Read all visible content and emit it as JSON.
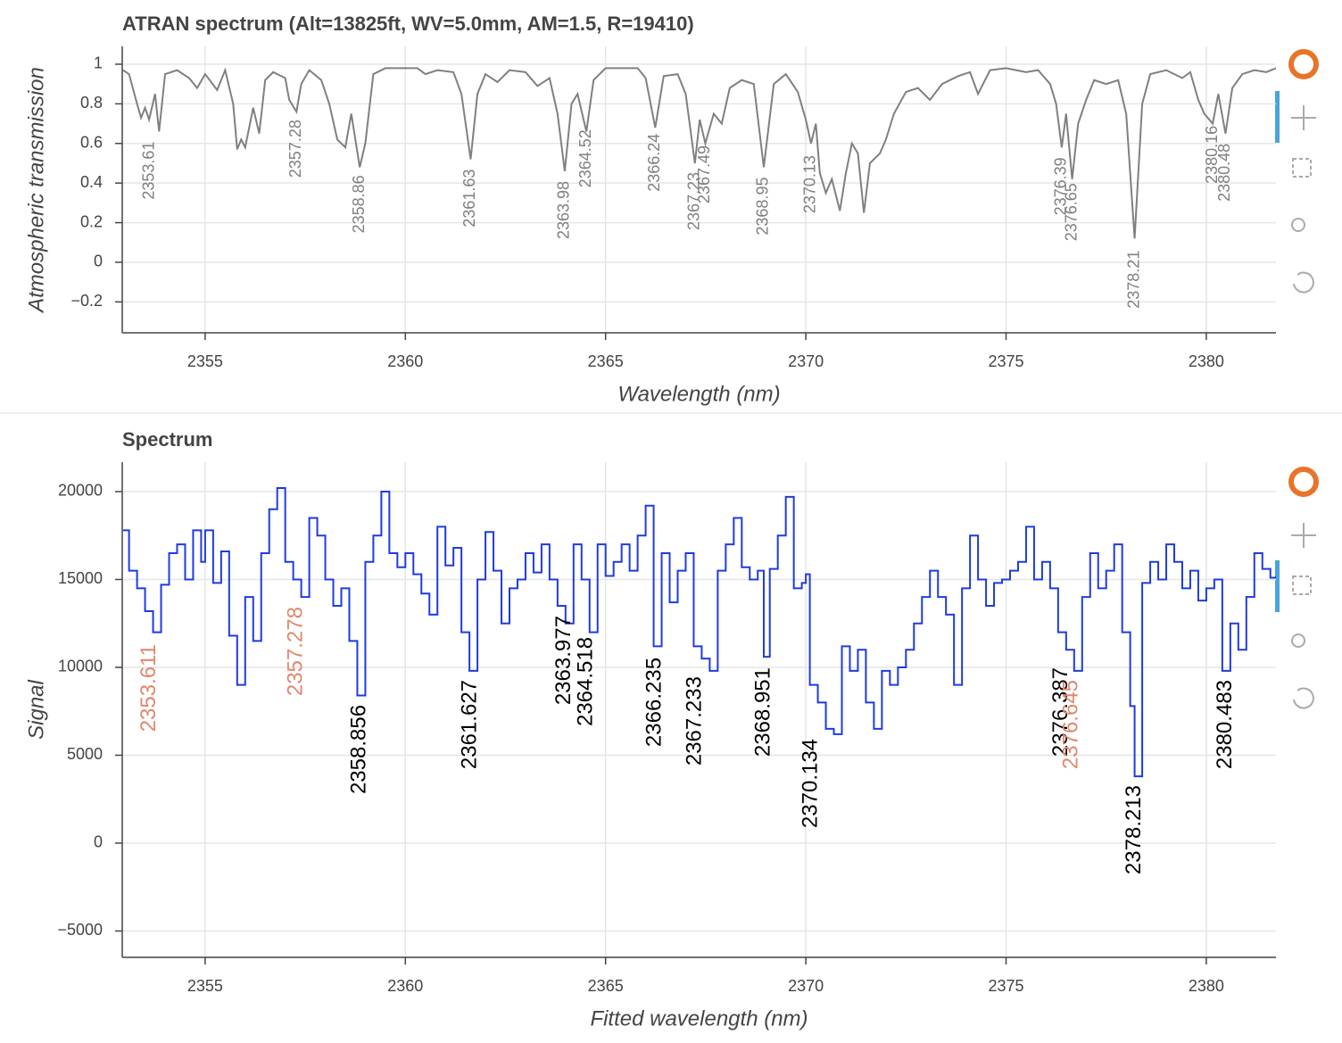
{
  "chart_data": [
    {
      "type": "line",
      "title": "ATRAN spectrum (Alt=13825ft, WV=5.0mm, AM=1.5, R=19410)",
      "x_label": "Wavelength (nm)",
      "y_label": "Atmospheric transmission",
      "color": "#808080",
      "grid": true,
      "step": false,
      "xlim": [
        2352.93,
        2381.74
      ],
      "ylim": [
        -0.356,
        1.09
      ],
      "xticks": [
        2355,
        2360,
        2365,
        2370,
        2375,
        2380
      ],
      "yticks": [
        1,
        0.8,
        0.6,
        0.4,
        0.2,
        0,
        {
          "value": -0.2,
          "label": "−0.2"
        }
      ],
      "x": [
        2352.95,
        2353.1,
        2353.3,
        2353.4,
        2353.5,
        2353.6,
        2353.75,
        2353.85,
        2354.0,
        2354.3,
        2354.6,
        2354.8,
        2355.0,
        2355.3,
        2355.5,
        2355.7,
        2355.8,
        2355.9,
        2356.0,
        2356.2,
        2356.35,
        2356.5,
        2356.7,
        2357.0,
        2357.1,
        2357.28,
        2357.4,
        2357.6,
        2357.9,
        2358.1,
        2358.3,
        2358.5,
        2358.65,
        2358.86,
        2359.0,
        2359.2,
        2359.5,
        2360.3,
        2360.5,
        2360.8,
        2361.2,
        2361.4,
        2361.63,
        2361.8,
        2362.0,
        2362.3,
        2362.6,
        2363.0,
        2363.3,
        2363.6,
        2363.8,
        2363.98,
        2364.15,
        2364.3,
        2364.52,
        2364.7,
        2365.0,
        2365.8,
        2366.0,
        2366.24,
        2366.45,
        2366.8,
        2367.0,
        2367.23,
        2367.35,
        2367.49,
        2367.7,
        2367.9,
        2368.1,
        2368.4,
        2368.7,
        2368.95,
        2369.2,
        2369.5,
        2369.8,
        2370.0,
        2370.13,
        2370.25,
        2370.35,
        2370.5,
        2370.65,
        2370.85,
        2371.0,
        2371.15,
        2371.3,
        2371.45,
        2371.6,
        2371.85,
        2372.0,
        2372.2,
        2372.5,
        2372.8,
        2373.1,
        2373.4,
        2373.8,
        2374.1,
        2374.3,
        2374.6,
        2375.0,
        2375.5,
        2375.8,
        2376.1,
        2376.25,
        2376.39,
        2376.5,
        2376.65,
        2376.8,
        2377.0,
        2377.2,
        2377.5,
        2377.8,
        2378.0,
        2378.21,
        2378.4,
        2378.6,
        2379.0,
        2379.4,
        2379.6,
        2379.8,
        2379.95,
        2380.16,
        2380.3,
        2380.48,
        2380.65,
        2380.9,
        2381.2,
        2381.5,
        2381.74
      ],
      "values": [
        0.97,
        0.95,
        0.8,
        0.73,
        0.78,
        0.72,
        0.85,
        0.66,
        0.95,
        0.97,
        0.93,
        0.88,
        0.95,
        0.87,
        0.97,
        0.8,
        0.57,
        0.62,
        0.58,
        0.78,
        0.65,
        0.92,
        0.96,
        0.93,
        0.82,
        0.76,
        0.9,
        0.97,
        0.92,
        0.8,
        0.62,
        0.58,
        0.75,
        0.48,
        0.6,
        0.95,
        0.98,
        0.98,
        0.95,
        0.97,
        0.96,
        0.85,
        0.52,
        0.85,
        0.95,
        0.91,
        0.97,
        0.96,
        0.89,
        0.93,
        0.75,
        0.46,
        0.8,
        0.85,
        0.66,
        0.92,
        0.98,
        0.98,
        0.93,
        0.68,
        0.94,
        0.95,
        0.85,
        0.5,
        0.72,
        0.6,
        0.75,
        0.7,
        0.88,
        0.92,
        0.9,
        0.48,
        0.9,
        0.95,
        0.86,
        0.72,
        0.6,
        0.7,
        0.45,
        0.35,
        0.42,
        0.26,
        0.45,
        0.6,
        0.55,
        0.25,
        0.5,
        0.55,
        0.62,
        0.75,
        0.86,
        0.88,
        0.82,
        0.9,
        0.94,
        0.96,
        0.85,
        0.97,
        0.98,
        0.96,
        0.97,
        0.9,
        0.8,
        0.58,
        0.75,
        0.42,
        0.7,
        0.82,
        0.92,
        0.9,
        0.92,
        0.75,
        0.12,
        0.8,
        0.95,
        0.97,
        0.93,
        0.96,
        0.82,
        0.75,
        0.7,
        0.85,
        0.65,
        0.88,
        0.95,
        0.97,
        0.96,
        0.98
      ],
      "annotation_color": "#808080",
      "annotations": [
        {
          "text": "2353.61",
          "x": 2353.61,
          "y": 0.61
        },
        {
          "text": "2357.28",
          "x": 2357.28,
          "y": 0.72
        },
        {
          "text": "2358.86",
          "x": 2358.86,
          "y": 0.44
        },
        {
          "text": "2361.63",
          "x": 2361.63,
          "y": 0.47
        },
        {
          "text": "2363.98",
          "x": 2363.98,
          "y": 0.41
        },
        {
          "text": "2364.52",
          "x": 2364.52,
          "y": 0.67
        },
        {
          "text": "2366.24",
          "x": 2366.24,
          "y": 0.65
        },
        {
          "text": "2367.23",
          "x": 2367.23,
          "y": 0.455
        },
        {
          "text": "2367.49",
          "x": 2367.49,
          "y": 0.59
        },
        {
          "text": "2368.95",
          "x": 2368.95,
          "y": 0.43
        },
        {
          "text": "2370.13",
          "x": 2370.13,
          "y": 0.54
        },
        {
          "text": "2376.39",
          "x": 2376.39,
          "y": 0.53
        },
        {
          "text": "2376.65",
          "x": 2376.65,
          "y": 0.4
        },
        {
          "text": "2378.21",
          "x": 2378.21,
          "y": 0.06
        },
        {
          "text": "2380.16",
          "x": 2380.16,
          "y": 0.69
        },
        {
          "text": "2380.48",
          "x": 2380.48,
          "y": 0.6
        }
      ]
    },
    {
      "type": "line",
      "title": "Spectrum",
      "x_label": "Fitted wavelength (nm)",
      "y_label": "Signal",
      "color": "#1f3be0",
      "grid": true,
      "step": true,
      "xlim": [
        2352.93,
        2381.74
      ],
      "ylim": [
        -6500,
        21675
      ],
      "xticks": [
        2355,
        2360,
        2365,
        2370,
        2375,
        2380
      ],
      "yticks": [
        20000,
        15000,
        10000,
        5000,
        0,
        {
          "value": -5000,
          "label": "−5000"
        }
      ],
      "x": [
        2352.95,
        2353.1,
        2353.3,
        2353.5,
        2353.7,
        2353.9,
        2354.1,
        2354.3,
        2354.5,
        2354.7,
        2354.9,
        2355.0,
        2355.2,
        2355.4,
        2355.6,
        2355.8,
        2356.0,
        2356.2,
        2356.4,
        2356.6,
        2356.8,
        2357.0,
        2357.2,
        2357.4,
        2357.6,
        2357.8,
        2358.0,
        2358.2,
        2358.4,
        2358.6,
        2358.8,
        2359.0,
        2359.2,
        2359.4,
        2359.6,
        2359.8,
        2360.0,
        2360.2,
        2360.4,
        2360.6,
        2360.8,
        2361.0,
        2361.2,
        2361.4,
        2361.6,
        2361.8,
        2362.0,
        2362.2,
        2362.4,
        2362.6,
        2362.8,
        2363.0,
        2363.2,
        2363.4,
        2363.6,
        2363.8,
        2364.0,
        2364.2,
        2364.4,
        2364.6,
        2364.8,
        2365.0,
        2365.2,
        2365.4,
        2365.6,
        2365.8,
        2366.0,
        2366.2,
        2366.4,
        2366.6,
        2366.8,
        2367.0,
        2367.2,
        2367.4,
        2367.6,
        2367.8,
        2368.0,
        2368.2,
        2368.4,
        2368.6,
        2368.8,
        2368.95,
        2369.1,
        2369.3,
        2369.5,
        2369.7,
        2369.9,
        2370.0,
        2370.1,
        2370.3,
        2370.5,
        2370.7,
        2370.9,
        2371.1,
        2371.3,
        2371.5,
        2371.7,
        2371.9,
        2372.1,
        2372.3,
        2372.5,
        2372.7,
        2372.9,
        2373.1,
        2373.3,
        2373.5,
        2373.7,
        2373.9,
        2374.1,
        2374.3,
        2374.5,
        2374.7,
        2374.9,
        2375.1,
        2375.3,
        2375.5,
        2375.7,
        2375.9,
        2376.1,
        2376.3,
        2376.5,
        2376.7,
        2376.9,
        2377.1,
        2377.3,
        2377.5,
        2377.7,
        2377.9,
        2378.1,
        2378.21,
        2378.4,
        2378.6,
        2378.8,
        2379.0,
        2379.2,
        2379.4,
        2379.6,
        2379.8,
        2380.0,
        2380.2,
        2380.4,
        2380.6,
        2380.8,
        2381.0,
        2381.2,
        2381.4,
        2381.6,
        2381.74
      ],
      "values": [
        17800,
        15500,
        14500,
        13200,
        12000,
        14700,
        16500,
        17000,
        15000,
        17800,
        16000,
        17800,
        14800,
        16600,
        11800,
        9000,
        14000,
        11500,
        16500,
        19000,
        20200,
        16000,
        15000,
        14000,
        18500,
        17500,
        15000,
        13500,
        14500,
        11500,
        8400,
        16000,
        17500,
        20000,
        16500,
        15700,
        16500,
        15300,
        14200,
        13000,
        18000,
        15800,
        16800,
        12000,
        9800,
        15000,
        17700,
        15500,
        12500,
        14500,
        15000,
        16500,
        15400,
        17000,
        15000,
        13500,
        12500,
        17000,
        15000,
        12000,
        17000,
        15200,
        16000,
        17000,
        15500,
        17500,
        19200,
        11200,
        16500,
        13700,
        15500,
        16500,
        11200,
        10500,
        9800,
        15500,
        17000,
        18500,
        15700,
        15000,
        15500,
        10600,
        15600,
        17500,
        19700,
        14500,
        14800,
        15300,
        9000,
        8000,
        6500,
        6200,
        11200,
        9800,
        11000,
        8000,
        6500,
        9800,
        9000,
        10000,
        11000,
        12500,
        14000,
        15500,
        14000,
        13000,
        9000,
        14500,
        17500,
        15000,
        13500,
        14800,
        15000,
        15500,
        16000,
        18000,
        15000,
        16000,
        14500,
        12000,
        11000,
        9800,
        14000,
        16500,
        14500,
        15500,
        17000,
        12000,
        7800,
        3800,
        14800,
        16000,
        15000,
        17000,
        16000,
        14500,
        15500,
        13800,
        14500,
        15000,
        9800,
        12500,
        11000,
        14000,
        16500,
        15600,
        15100,
        15200
      ],
      "annotations": [
        {
          "text": "2353.611",
          "x": 2353.611,
          "y": 11320,
          "color": "#e0886e"
        },
        {
          "text": "2357.278",
          "x": 2357.278,
          "y": 13450,
          "color": "#e0886e"
        },
        {
          "text": "2358.856",
          "x": 2358.856,
          "y": 7870,
          "color": "#000000"
        },
        {
          "text": "2361.627",
          "x": 2361.627,
          "y": 9290,
          "color": "#000000"
        },
        {
          "text": "2363.977",
          "x": 2363.977,
          "y": 12940,
          "color": "#000000"
        },
        {
          "text": "2364.518",
          "x": 2364.518,
          "y": 11730,
          "color": "#000000"
        },
        {
          "text": "2366.235",
          "x": 2366.235,
          "y": 10560,
          "color": "#000000"
        },
        {
          "text": "2367.233",
          "x": 2367.233,
          "y": 9490,
          "color": "#000000"
        },
        {
          "text": "2368.951",
          "x": 2368.951,
          "y": 10000,
          "color": "#000000"
        },
        {
          "text": "2370.134",
          "x": 2370.134,
          "y": 5940,
          "color": "#000000"
        },
        {
          "text": "2376.387",
          "x": 2376.387,
          "y": 10000,
          "color": "#000000"
        },
        {
          "text": "2376.645",
          "x": 2376.645,
          "y": 9290,
          "color": "#e0886e"
        },
        {
          "text": "2378.213",
          "x": 2378.213,
          "y": 3300,
          "color": "#000000"
        },
        {
          "text": "2380.483",
          "x": 2380.483,
          "y": 9290,
          "color": "#000000"
        }
      ]
    }
  ]
}
